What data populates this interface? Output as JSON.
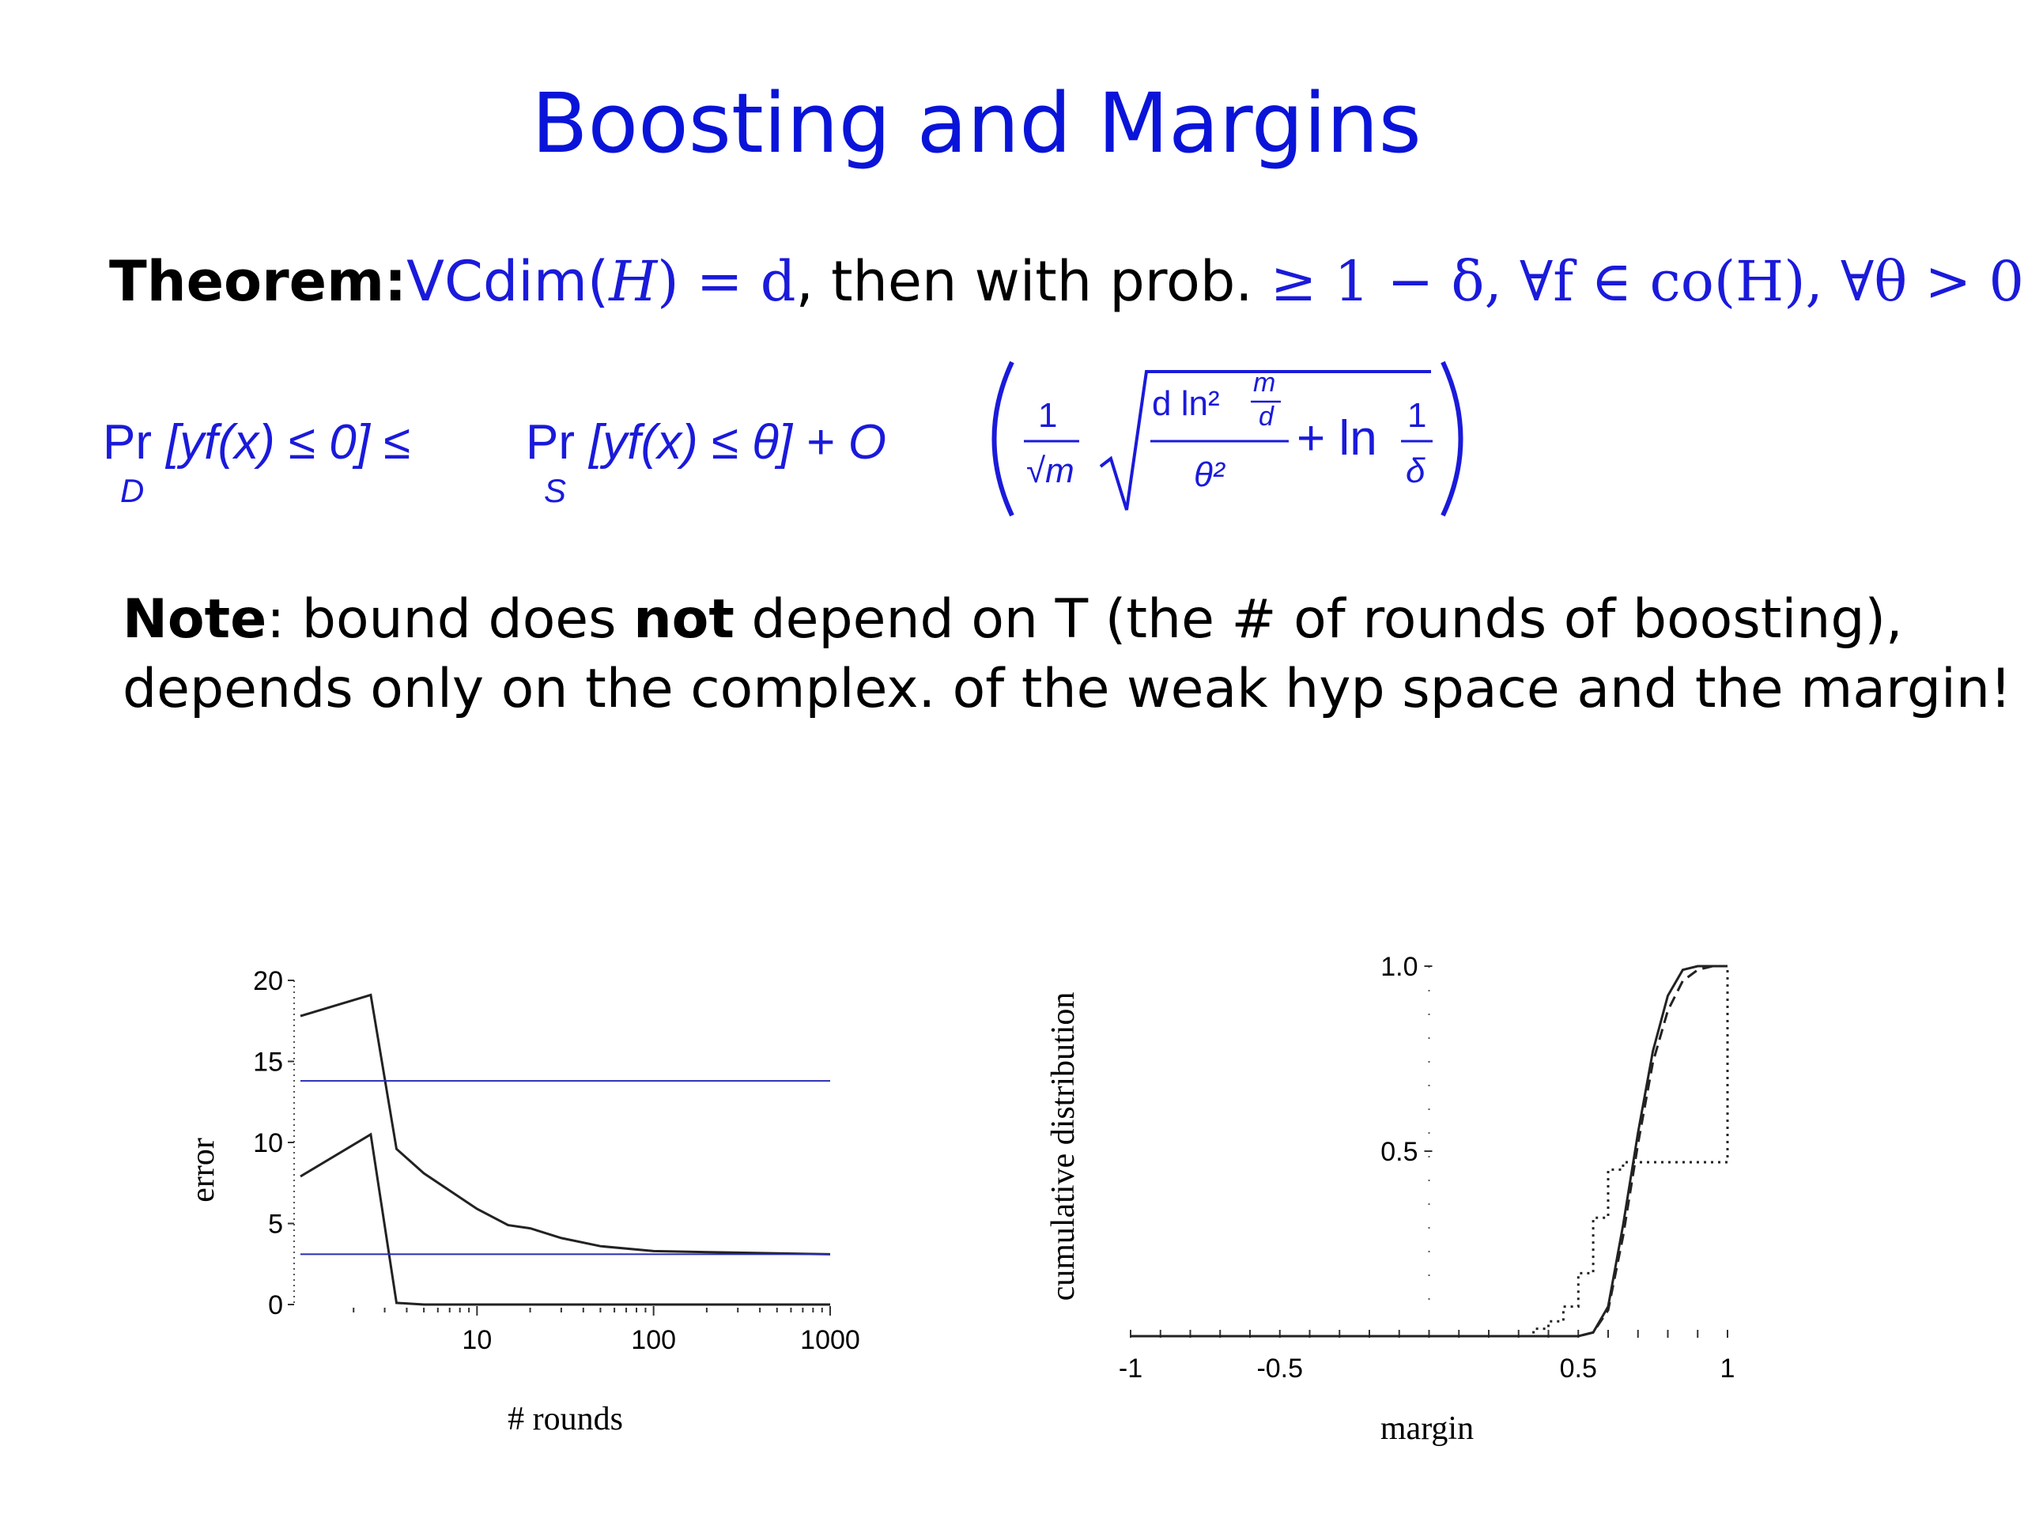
{
  "title": "Boosting and Margins",
  "theorem": {
    "label": "Theorem:",
    "vcdim": "VCdim(",
    "H": "H",
    "eq_d": ") = d",
    "then_text": ", then with prob. ",
    "prob_expr": "≥ 1 − δ, ∀f ∈ co(H), ∀θ > 0",
    "trailing": ","
  },
  "bound": {
    "lhs_pr": "Pr",
    "lhs_sub": "D",
    "lhs_bracket": "[yf(x) ≤ 0] ≤",
    "rhs_pr": "Pr",
    "rhs_sub": "S",
    "rhs_bracket": "[yf(x) ≤ θ] + O",
    "frac_num": "1",
    "frac_den": "√m",
    "root_num": "d ln²",
    "root_num_sup_num": "m",
    "root_num_sup_den": "d",
    "root_den": "θ²",
    "plus_ln": "+ ln",
    "ln_num": "1",
    "ln_den": "δ"
  },
  "note": {
    "label": "Note",
    "line1_a": ":  bound does ",
    "line1_bold": "not",
    "line1_b": " depend on  T (the # of rounds of boosting),",
    "line2": "depends only on the complex. of the weak hyp space and the margin!"
  },
  "chart_data": [
    {
      "type": "line",
      "title": "",
      "xlabel": "# rounds",
      "ylabel": "error",
      "x_scale": "log",
      "xlim": [
        1,
        1000
      ],
      "ylim": [
        0,
        20
      ],
      "x_ticks": [
        "10",
        "100",
        "1000"
      ],
      "y_ticks": [
        "0",
        "5",
        "10",
        "15",
        "20"
      ],
      "series": [
        {
          "x": [
            1,
            2.5,
            3.5,
            5,
            10,
            15,
            20,
            30,
            50,
            100,
            300,
            1000
          ],
          "values": [
            17.8,
            19.1,
            9.6,
            8.1,
            5.9,
            4.9,
            4.7,
            4.1,
            3.6,
            3.3,
            3.2,
            3.1
          ]
        },
        {
          "x": [
            1,
            2.5,
            3.5,
            5,
            10,
            100,
            1000
          ],
          "values": [
            7.9,
            10.5,
            0.1,
            0,
            0,
            0,
            0
          ]
        },
        {
          "x": [
            1,
            1000
          ],
          "values": [
            13.8,
            13.8
          ],
          "color": "#2b2bb5"
        },
        {
          "x": [
            1,
            1000
          ],
          "values": [
            3.1,
            3.1
          ],
          "color": "#2b2bb5"
        }
      ]
    },
    {
      "type": "line",
      "title": "",
      "xlabel": "margin",
      "ylabel": "cumulative distribution",
      "xlim": [
        -1,
        1
      ],
      "ylim": [
        0,
        1
      ],
      "x_ticks": [
        "-1",
        "-0.5",
        "0.5",
        "1"
      ],
      "y_ticks": [
        "0.5",
        "1.0"
      ],
      "series": [
        {
          "style": "solid",
          "x": [
            -1,
            0.4,
            0.5,
            0.55,
            0.6,
            0.65,
            0.7,
            0.75,
            0.8,
            0.85,
            0.9,
            1.0
          ],
          "values": [
            0,
            0,
            0,
            0.01,
            0.08,
            0.3,
            0.55,
            0.77,
            0.92,
            0.99,
            1.0,
            1.0
          ]
        },
        {
          "style": "dashed",
          "x": [
            -1,
            0.4,
            0.5,
            0.55,
            0.6,
            0.65,
            0.7,
            0.75,
            0.8,
            0.85,
            0.9,
            0.95,
            1.0
          ],
          "values": [
            0,
            0,
            0,
            0.01,
            0.07,
            0.27,
            0.52,
            0.74,
            0.88,
            0.96,
            0.99,
            1.0,
            1.0
          ]
        },
        {
          "style": "dotted",
          "x": [
            -1,
            0.3,
            0.35,
            0.4,
            0.45,
            0.5,
            0.55,
            0.6,
            0.65,
            1.0,
            1.0
          ],
          "values": [
            0,
            0,
            0.02,
            0.04,
            0.08,
            0.17,
            0.32,
            0.45,
            0.47,
            0.47,
            1.0
          ]
        }
      ]
    }
  ]
}
